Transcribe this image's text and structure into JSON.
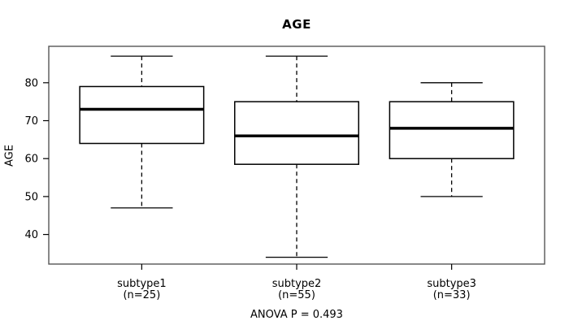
{
  "chart_data": {
    "type": "boxplot",
    "title": "AGE",
    "ylabel": "AGE",
    "xlabel": "",
    "annotation": "ANOVA P = 0.493",
    "yticks": [
      40,
      50,
      60,
      70,
      80
    ],
    "ylim": [
      32.2,
      89.6
    ],
    "grid": false,
    "legend": "none",
    "whisker_style": "dashed",
    "groups": [
      {
        "label": "subtype1",
        "sublabel": "(n=25)",
        "n": 25,
        "min": 47,
        "q1": 64,
        "median": 73,
        "q3": 79,
        "max": 87
      },
      {
        "label": "subtype2",
        "sublabel": "(n=55)",
        "n": 55,
        "min": 34,
        "q1": 58.5,
        "median": 66,
        "q3": 75,
        "max": 87
      },
      {
        "label": "subtype3",
        "sublabel": "(n=33)",
        "n": 33,
        "min": 50,
        "q1": 60,
        "median": 68,
        "q3": 75,
        "max": 80
      }
    ],
    "colors": {
      "background": "#ffffff",
      "line": "#000000",
      "box_fill": "#ffffff",
      "plot_border": "#555555",
      "text": "#000000"
    }
  }
}
